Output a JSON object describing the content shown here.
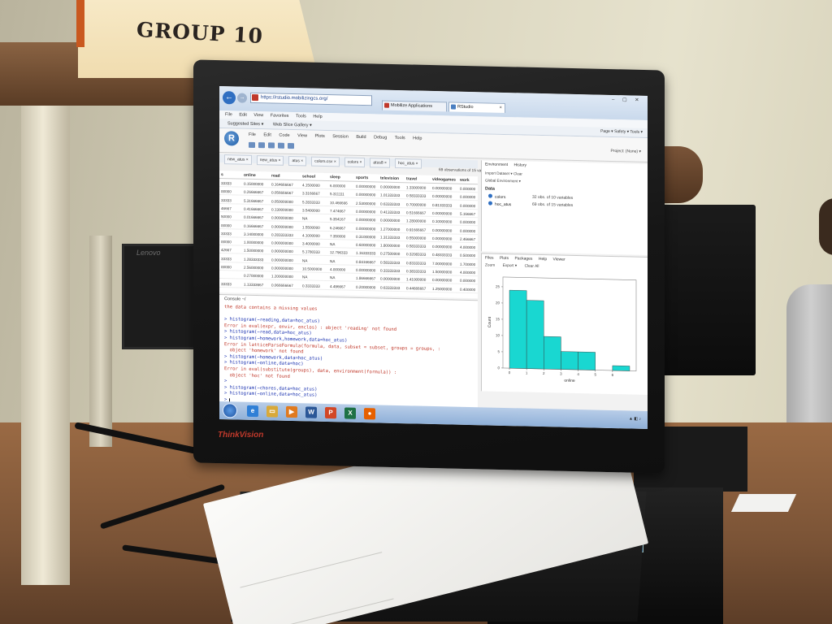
{
  "sign": {
    "text": "GROUP 10"
  },
  "monitor": {
    "brand": "lenovo",
    "bezel_label": "ThinkVision"
  },
  "browser": {
    "url": "https://rstudio.mobilizingcs.org/",
    "tabs": [
      {
        "label": "Mobilize Applications",
        "icon_color": "#c0392b"
      },
      {
        "label": "RStudio",
        "icon_color": "#4a7fc1"
      }
    ],
    "menu": [
      "File",
      "Edit",
      "View",
      "Favorites",
      "Tools",
      "Help"
    ],
    "favorites": [
      "Suggested Sites ▾",
      "Web Slice Gallery ▾"
    ],
    "tools_right": "Page ▾   Safety ▾   Tools ▾"
  },
  "rstudio": {
    "menu": [
      "File",
      "Edit",
      "Code",
      "View",
      "Plots",
      "Session",
      "Build",
      "Debug",
      "Tools",
      "Help"
    ],
    "user_info": "Project: (None) ▾",
    "viewer_tabs": [
      "new_atus ×",
      "new_atus ×",
      "atus ×",
      "colors.csv ×",
      "colors ×",
      "atus8 ×",
      "hoc_atus ×",
      "atus8 ×"
    ],
    "viewer_info": "69 observations of 15 variables",
    "columns": [
      "s",
      "online",
      "read",
      "school",
      "sleep",
      "sports",
      "television",
      "travel",
      "videogames",
      "work"
    ],
    "rows": [
      [
        "33333",
        "0.15000000",
        "0.164666667",
        "4.1500000",
        "6.000000",
        "0.00000000",
        "0.00000000",
        "1.33000000",
        "0.00000000",
        "0.000000"
      ],
      [
        "00000",
        "0.26666667",
        "0.056666667",
        "3.3166667",
        "5.311111",
        "0.00000000",
        "1.01333333",
        "0.58333333",
        "0.00000000",
        "0.000000"
      ],
      [
        "33333",
        "5.31666667",
        "0.050000000",
        "5.2833333",
        "10.466666",
        "2.53000000",
        "0.63333333",
        "0.70000000",
        "0.81333333",
        "0.000000"
      ],
      [
        "46667",
        "0.41666667",
        "0.130000000",
        "3.5400000",
        "7.474667",
        "0.00000000",
        "0.41333333",
        "0.51666667",
        "0.00000000",
        "5.166667"
      ],
      [
        "50000",
        "0.01666667",
        "0.000000000",
        "NA",
        "5.354167",
        "0.00000000",
        "0.00000000",
        "1.28000000",
        "0.10000000",
        "0.000000"
      ],
      [
        "00000",
        "0.16666667",
        "0.000000000",
        "1.5500000",
        "6.246667",
        "0.00000000",
        "1.27000000",
        "0.91666667",
        "0.00000000",
        "0.000000"
      ],
      [
        "33333",
        "3.14000000",
        "0.283333333",
        "4.1000000",
        "7.350000",
        "0.31000000",
        "1.31333333",
        "0.55000000",
        "0.00000000",
        "2.466667"
      ],
      [
        "00000",
        "1.00000000",
        "0.000000000",
        "3.4000000",
        "NA",
        "0.60000000",
        "1.80000000",
        "0.58333333",
        "0.00000000",
        "4.000000"
      ],
      [
        "42667",
        "1.50000000",
        "0.000000000",
        "5.1780333",
        "12.796333",
        "1.16333333",
        "0.27500000",
        "0.32083333",
        "0.48333333",
        "0.500000"
      ],
      [
        "33333",
        "1.28333333",
        "0.000000000",
        "NA",
        "NA",
        "0.84166667",
        "0.58333333",
        "0.83333333",
        "7.00000000",
        "1.700000"
      ],
      [
        "00000",
        "2.56000000",
        "0.000000000",
        "10.5000000",
        "4.000000",
        "0.00000000",
        "0.33333333",
        "0.38333333",
        "1.50000000",
        "4.000000"
      ],
      [
        "",
        "0.27000000",
        "1.200000000",
        "NA",
        "NA",
        "1.86666667",
        "0.00000000",
        "1.41000000",
        "0.00000000",
        "0.000000"
      ],
      [
        "33333",
        "1.13333667",
        "0.066666667",
        "0.3333333",
        "4.496667",
        "0.20000000",
        "0.63333333",
        "0.44666667",
        "1.25000000",
        "0.400000"
      ]
    ],
    "console": {
      "title": "Console ~/",
      "lines": [
        {
          "text": "the data contains a missing values",
          "kind": "err"
        },
        {
          "text": "",
          "kind": "cmd"
        },
        {
          "text": "> histogram(~reading,data=hoc_atus)",
          "kind": "cmd"
        },
        {
          "text": "Error in eval(expr, envir, enclos) : object 'reading' not found",
          "kind": "err"
        },
        {
          "text": "> histogram(~read,data=hoc_atus)",
          "kind": "cmd"
        },
        {
          "text": "> histogram(~homework,homework,data=hoc_atus)",
          "kind": "cmd"
        },
        {
          "text": "Error in latticeParseFormula(formula, data, subset = subset, groups = groups, :",
          "kind": "err"
        },
        {
          "text": "  object 'homework' not found",
          "kind": "err"
        },
        {
          "text": "> histogram(~homework,data=hoc_atus)",
          "kind": "cmd"
        },
        {
          "text": "> histogram(~online,data=hoc)",
          "kind": "cmd"
        },
        {
          "text": "Error in eval(substitute(groups), data, environment(formula)) :",
          "kind": "err"
        },
        {
          "text": "  object 'hoc' not found",
          "kind": "err"
        },
        {
          "text": ">",
          "kind": "cmd"
        },
        {
          "text": "> histogram(~chores,data=hoc_atus)",
          "kind": "cmd"
        },
        {
          "text": "> histogram(~online,data=hoc_atus)",
          "kind": "cmd"
        },
        {
          "text": ">",
          "kind": "cmd"
        }
      ]
    },
    "environment": {
      "tabs": [
        "Environment",
        "History"
      ],
      "tools": "Import Dataset ▾   Clear",
      "scope": "Global Environment ▾",
      "section": "Data",
      "items": [
        {
          "name": "colors",
          "value": "32 obs. of 10 variables"
        },
        {
          "name": "hoc_atus",
          "value": "69 obs. of 15 variables"
        }
      ]
    },
    "plots_pane": {
      "tabs": [
        "Files",
        "Plots",
        "Packages",
        "Help",
        "Viewer"
      ],
      "tools": [
        "Zoom",
        "Export ▾",
        "Clear All"
      ]
    }
  },
  "chart_data": {
    "type": "bar",
    "title": "",
    "xlabel": "online",
    "ylabel": "Count",
    "bar_color": "#19d7d1",
    "categories": [
      "0-1",
      "1-2",
      "2-3",
      "3-4",
      "4-5",
      "5-6",
      "6-7"
    ],
    "values": [
      24,
      21,
      10,
      5.5,
      5.5,
      0,
      1.5
    ],
    "ylim": [
      0,
      28
    ],
    "y_ticks": [
      "0",
      "5",
      "10",
      "15",
      "20",
      "25"
    ],
    "x_ticks": [
      "0",
      "1",
      "2",
      "3",
      "4",
      "5",
      "6"
    ],
    "grid": false
  },
  "taskbar": {
    "apps": [
      {
        "name": "ie",
        "glyph": "e",
        "color": "#2f7fd6"
      },
      {
        "name": "explorer",
        "glyph": "▭",
        "color": "#d8a93a"
      },
      {
        "name": "media",
        "glyph": "▶",
        "color": "#e07a1f"
      },
      {
        "name": "word",
        "glyph": "W",
        "color": "#2b5797"
      },
      {
        "name": "powerpoint",
        "glyph": "P",
        "color": "#d24726"
      },
      {
        "name": "excel",
        "glyph": "X",
        "color": "#1e7145"
      },
      {
        "name": "firefox",
        "glyph": "●",
        "color": "#e66000"
      }
    ]
  }
}
